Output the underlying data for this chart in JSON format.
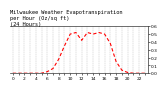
{
  "title": "Milwaukee Weather Evapotranspiration\nper Hour (Oz/sq ft)\n(24 Hours)",
  "hours": [
    0,
    1,
    2,
    3,
    4,
    5,
    6,
    7,
    8,
    9,
    10,
    11,
    12,
    13,
    14,
    15,
    16,
    17,
    18,
    19,
    20,
    21,
    22,
    23
  ],
  "values": [
    0.0,
    0.0,
    0.0,
    0.0,
    0.0,
    0.0,
    0.02,
    0.06,
    0.18,
    0.35,
    0.5,
    0.52,
    0.42,
    0.52,
    0.5,
    0.52,
    0.5,
    0.38,
    0.15,
    0.04,
    0.01,
    0.0,
    0.0,
    0.0
  ],
  "line_color": "#ff0000",
  "line_style": "--",
  "line_width": 0.8,
  "grid_color": "#999999",
  "bg_color": "#ffffff",
  "ylim": [
    0,
    0.6
  ],
  "xlim": [
    -0.5,
    23.5
  ],
  "title_fontsize": 3.8,
  "tick_fontsize": 3.2,
  "yticks": [
    0.0,
    0.1,
    0.2,
    0.3,
    0.4,
    0.5,
    0.6
  ]
}
